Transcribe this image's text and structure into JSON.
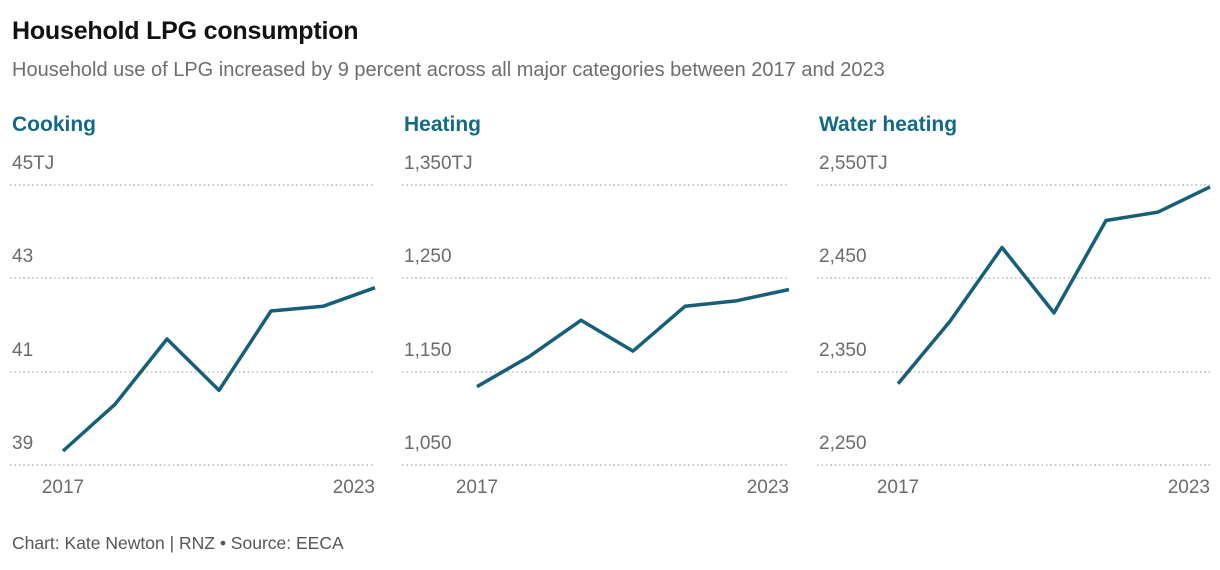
{
  "header": {
    "title": "Household LPG consumption",
    "subtitle": "Household use of LPG increased by 9 percent across all major categories between 2017 and 2023"
  },
  "footer": {
    "text": "Chart: Kate Newton | RNZ • Source: EECA"
  },
  "colors": {
    "accent_teal": "#166986",
    "line": "#155f78",
    "grid": "#cccccc",
    "title_text": "#121212",
    "muted_text": "#6b6b6b",
    "footer_text": "#565656"
  },
  "chart_data": [
    {
      "type": "line",
      "title": "Cooking",
      "unit": "TJ",
      "x": [
        2017,
        2018,
        2019,
        2020,
        2021,
        2022,
        2023
      ],
      "values": [
        39.3,
        40.3,
        41.7,
        40.6,
        42.3,
        42.4,
        42.8
      ],
      "ylim": [
        39,
        45
      ],
      "yticks": [
        "45TJ",
        "43",
        "41",
        "39"
      ],
      "ytick_values": [
        45,
        43,
        41,
        39
      ],
      "xticks": [
        "2017",
        "2023"
      ],
      "grid": "horizontal-dotted",
      "legend": "none"
    },
    {
      "type": "line",
      "title": "Heating",
      "unit": "TJ",
      "x": [
        2017,
        2018,
        2019,
        2020,
        2021,
        2022,
        2023
      ],
      "values": [
        1134,
        1166,
        1205,
        1172,
        1220,
        1226,
        1238
      ],
      "ylim": [
        1050,
        1350
      ],
      "yticks": [
        "1,350TJ",
        "1,250",
        "1,150",
        "1,050"
      ],
      "ytick_values": [
        1350,
        1250,
        1150,
        1050
      ],
      "xticks": [
        "2017",
        "2023"
      ],
      "grid": "horizontal-dotted",
      "legend": "none"
    },
    {
      "type": "line",
      "title": "Water heating",
      "unit": "TJ",
      "x": [
        2017,
        2018,
        2019,
        2020,
        2021,
        2022,
        2023
      ],
      "values": [
        2337,
        2404,
        2483,
        2413,
        2512,
        2521,
        2548
      ],
      "ylim": [
        2250,
        2550
      ],
      "yticks": [
        "2,550TJ",
        "2,450",
        "2,350",
        "2,250"
      ],
      "ytick_values": [
        2550,
        2450,
        2350,
        2250
      ],
      "xticks": [
        "2017",
        "2023"
      ],
      "grid": "horizontal-dotted",
      "legend": "none"
    }
  ]
}
